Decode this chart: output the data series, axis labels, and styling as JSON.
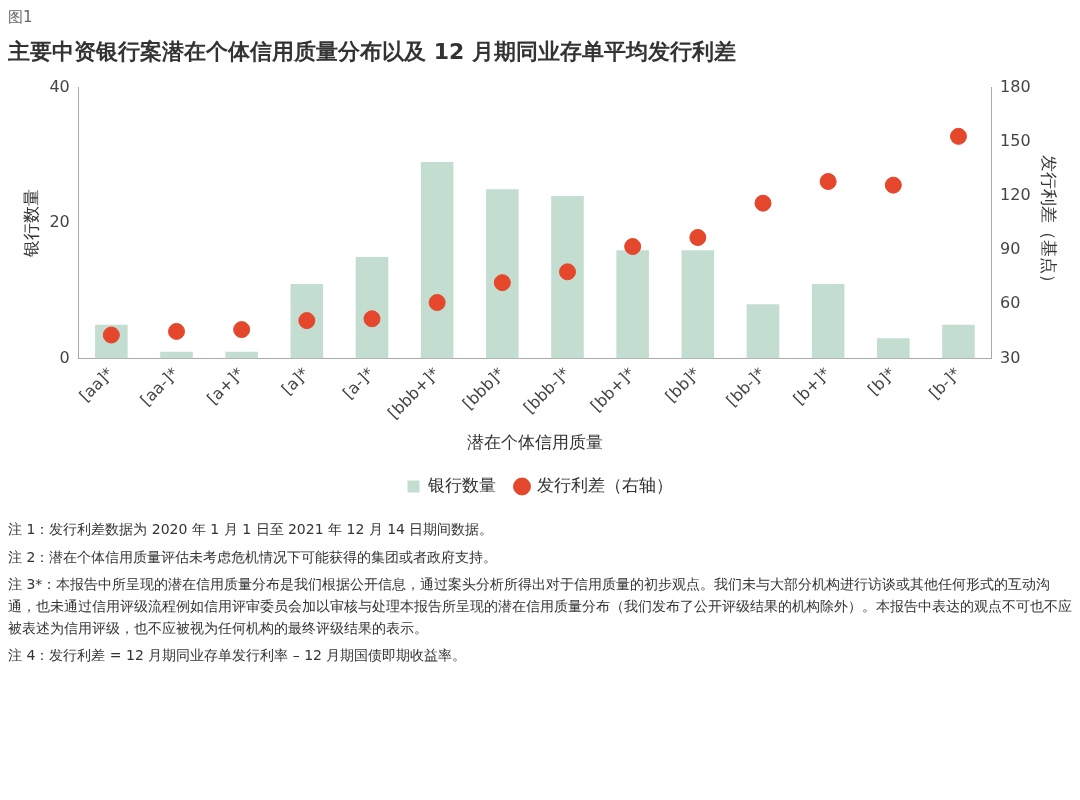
{
  "chart_data": {
    "type": "bar",
    "title": "主要中资银行案潜在个体信用质量分布以及 12 月期同业存单平均发行利差",
    "xlabel": "潜在个体信用质量",
    "ylabel": "银行数量",
    "y2label": "发行利差（基点）",
    "categories": [
      "[aa]*",
      "[aa-]*",
      "[a+]*",
      "[a]*",
      "[a-]*",
      "[bbb+]*",
      "[bbb]*",
      "[bbb-]*",
      "[bb+]*",
      "[bb]*",
      "[bb-]*",
      "[b+]*",
      "[b]*",
      "[b-]*"
    ],
    "series": [
      {
        "name": "银行数量",
        "color": "#c3ded0",
        "values": [
          5,
          1,
          1,
          11,
          15,
          29,
          25,
          24,
          16,
          16,
          8,
          11,
          3,
          5
        ]
      },
      {
        "name": "发行利差（右轴）",
        "type": "scatter",
        "axis": "y2",
        "color": "#e4472b",
        "values": [
          43,
          45,
          46,
          51,
          52,
          61,
          72,
          78,
          92,
          97,
          116,
          128,
          126,
          153
        ]
      }
    ],
    "ylim": [
      0,
      40
    ],
    "yticks": [
      0,
      20,
      40
    ],
    "y2lim": [
      30,
      180
    ],
    "y2ticks": [
      30,
      60,
      90,
      120,
      150,
      180
    ],
    "grid": false,
    "legend": "bottom",
    "marker": "circle",
    "annotations": [
      "图1",
      "注 1：发行利差数据为 2020 年 1 月 1 日至 2021 年 12 月 14 日期间数据。",
      "注 2：潜在个体信用质量评估未考虑危机情况下可能获得的集团或者政府支持。",
      "注 3*：本报告中所呈现的潜在信用质量分布是我们根据公开信息，通过案头分析所得出对于信用质量的初步观点。我们未与大部分机构进行访谈或其他任何形式的互动沟通，也未通过信用评级流程例如信用评审委员会加以审核与处理本报告所呈现的潜在信用质量分布（我们发布了公开评级结果的机构除外）。本报告中表达的观点不可也不应被表述为信用评级，也不应被视为任何机构的最终评级结果的表示。",
      "注 4：发行利差 = 12 月期同业存单发行利率 – 12 月期国债即期收益率。"
    ]
  }
}
